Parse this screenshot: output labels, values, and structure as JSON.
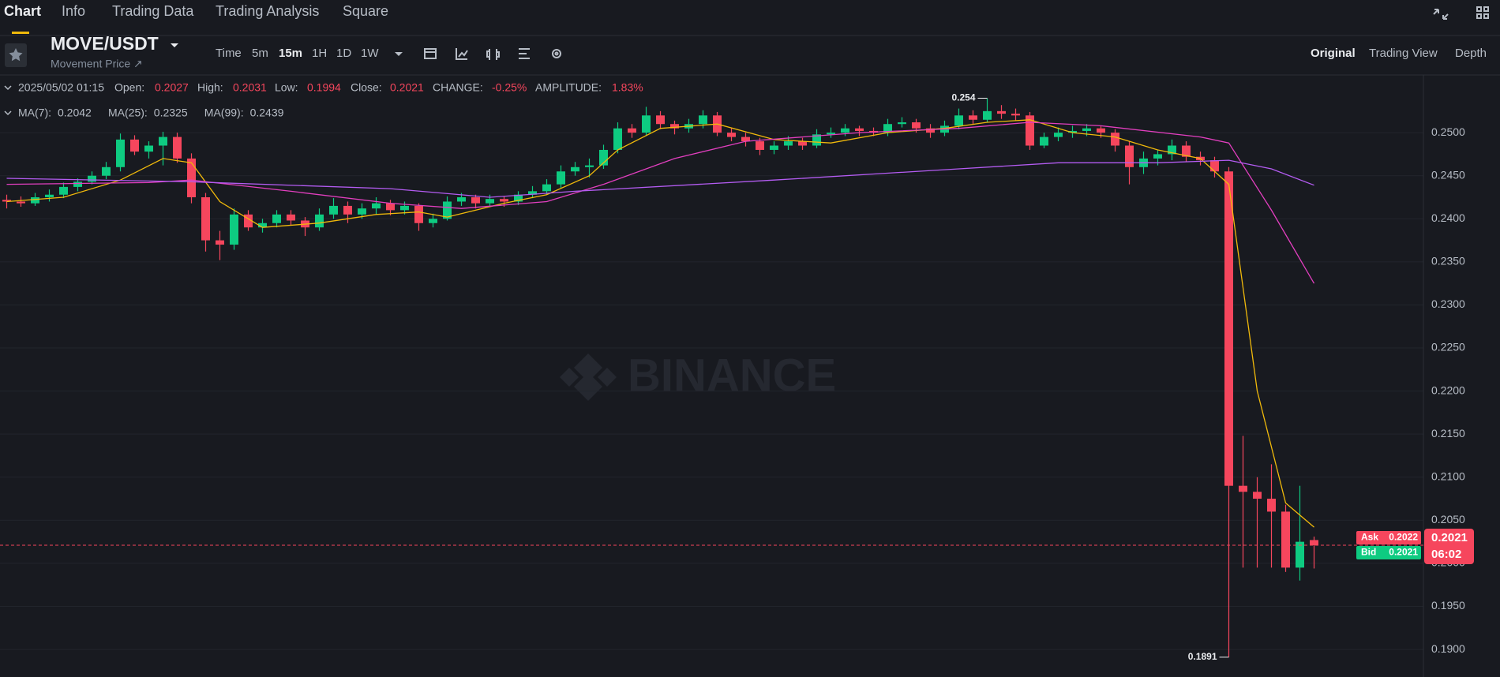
{
  "tabs": [
    "Chart",
    "Info",
    "Trading Data",
    "Trading Analysis",
    "Square"
  ],
  "symbol": "MOVE/USDT",
  "subtitle": "Movement Price ↗",
  "intervals": [
    "Time",
    "5m",
    "15m",
    "1H",
    "1D",
    "1W"
  ],
  "views": [
    "Original",
    "Trading View",
    "Depth"
  ],
  "info": {
    "time": "2025/05/02 01:15",
    "open_label": "Open:",
    "high_label": "High:",
    "low_label": "Low:",
    "close_label": "Close:",
    "change_label": "CHANGE:",
    "change": "-0.25%",
    "amplitude_label": "AMPLITUDE:",
    "amplitude": "1.83%"
  },
  "order_book": {
    "ask_label": "Ask",
    "ask": 0.2022,
    "bid_label": "Bid",
    "bid": 0.2021,
    "countdown": "06:02"
  },
  "chart_data": {
    "type": "candlestick",
    "watermark": "BINANCE",
    "grid": true,
    "up_color": "#0ecb81",
    "down_color": "#f6465d",
    "ylim": [
      0.1868,
      0.2567
    ],
    "yticks": [
      {
        "value": 0.19,
        "label": "0.1900"
      },
      {
        "value": 0.195,
        "label": "0.1950"
      },
      {
        "value": 0.2,
        "label": "0.2000"
      },
      {
        "value": 0.205,
        "label": "0.2050"
      },
      {
        "value": 0.21,
        "label": "0.2100"
      },
      {
        "value": 0.215,
        "label": "0.2150"
      },
      {
        "value": 0.22,
        "label": "0.2200"
      },
      {
        "value": 0.225,
        "label": "0.2250"
      },
      {
        "value": 0.23,
        "label": "0.2300"
      },
      {
        "value": 0.235,
        "label": "0.2350"
      },
      {
        "value": 0.24,
        "label": "0.2400"
      },
      {
        "value": 0.245,
        "label": "0.2450"
      },
      {
        "value": 0.25,
        "label": "0.2500"
      }
    ],
    "candles": [
      [
        0.2422,
        0.2428,
        0.2412,
        0.242
      ],
      [
        0.242,
        0.2426,
        0.2414,
        0.2418
      ],
      [
        0.2418,
        0.243,
        0.2415,
        0.2425
      ],
      [
        0.2425,
        0.2434,
        0.242,
        0.2428
      ],
      [
        0.2428,
        0.2442,
        0.2424,
        0.2437
      ],
      [
        0.2437,
        0.2447,
        0.2432,
        0.2443
      ],
      [
        0.2443,
        0.2455,
        0.244,
        0.245
      ],
      [
        0.245,
        0.2466,
        0.2446,
        0.246
      ],
      [
        0.246,
        0.2499,
        0.2455,
        0.2492
      ],
      [
        0.2492,
        0.2497,
        0.2474,
        0.2478
      ],
      [
        0.2478,
        0.249,
        0.247,
        0.2485
      ],
      [
        0.2485,
        0.2501,
        0.2462,
        0.2495
      ],
      [
        0.2495,
        0.25,
        0.2465,
        0.247
      ],
      [
        0.247,
        0.2476,
        0.2418,
        0.2425
      ],
      [
        0.2425,
        0.243,
        0.2362,
        0.2375
      ],
      [
        0.2375,
        0.2386,
        0.2352,
        0.237
      ],
      [
        0.237,
        0.2412,
        0.2364,
        0.2405
      ],
      [
        0.2405,
        0.241,
        0.2386,
        0.239
      ],
      [
        0.239,
        0.24,
        0.2384,
        0.2395
      ],
      [
        0.2395,
        0.241,
        0.239,
        0.2405
      ],
      [
        0.2405,
        0.241,
        0.2392,
        0.2398
      ],
      [
        0.2398,
        0.2402,
        0.238,
        0.239
      ],
      [
        0.239,
        0.2412,
        0.2386,
        0.2405
      ],
      [
        0.2405,
        0.2424,
        0.24,
        0.2415
      ],
      [
        0.2415,
        0.242,
        0.2395,
        0.2405
      ],
      [
        0.2405,
        0.2418,
        0.24,
        0.2412
      ],
      [
        0.2412,
        0.2425,
        0.2405,
        0.2418
      ],
      [
        0.2418,
        0.2422,
        0.2404,
        0.241
      ],
      [
        0.241,
        0.242,
        0.2405,
        0.2415
      ],
      [
        0.2415,
        0.2418,
        0.2386,
        0.2395
      ],
      [
        0.2395,
        0.2406,
        0.239,
        0.24
      ],
      [
        0.24,
        0.2426,
        0.2398,
        0.242
      ],
      [
        0.242,
        0.243,
        0.2415,
        0.2425
      ],
      [
        0.2425,
        0.2428,
        0.2412,
        0.2418
      ],
      [
        0.2418,
        0.2428,
        0.2414,
        0.2423
      ],
      [
        0.2423,
        0.2426,
        0.2414,
        0.242
      ],
      [
        0.242,
        0.2432,
        0.2416,
        0.2428
      ],
      [
        0.2428,
        0.2438,
        0.2424,
        0.2432
      ],
      [
        0.2432,
        0.2446,
        0.2428,
        0.244
      ],
      [
        0.244,
        0.2462,
        0.2436,
        0.2455
      ],
      [
        0.2455,
        0.2466,
        0.245,
        0.246
      ],
      [
        0.246,
        0.247,
        0.2448,
        0.2462
      ],
      [
        0.2462,
        0.2486,
        0.2458,
        0.248
      ],
      [
        0.248,
        0.2512,
        0.2476,
        0.2505
      ],
      [
        0.2505,
        0.251,
        0.2494,
        0.25
      ],
      [
        0.25,
        0.253,
        0.2496,
        0.252
      ],
      [
        0.252,
        0.2525,
        0.2504,
        0.251
      ],
      [
        0.251,
        0.2514,
        0.2498,
        0.2505
      ],
      [
        0.2505,
        0.2516,
        0.25,
        0.251
      ],
      [
        0.251,
        0.2526,
        0.2505,
        0.252
      ],
      [
        0.252,
        0.2524,
        0.2496,
        0.25
      ],
      [
        0.25,
        0.2506,
        0.249,
        0.2495
      ],
      [
        0.2495,
        0.25,
        0.2484,
        0.249
      ],
      [
        0.249,
        0.2494,
        0.2474,
        0.248
      ],
      [
        0.248,
        0.249,
        0.2475,
        0.2485
      ],
      [
        0.2485,
        0.2496,
        0.248,
        0.249
      ],
      [
        0.249,
        0.2494,
        0.248,
        0.2485
      ],
      [
        0.2485,
        0.2504,
        0.2482,
        0.2498
      ],
      [
        0.2498,
        0.2506,
        0.2494,
        0.25
      ],
      [
        0.25,
        0.251,
        0.2496,
        0.2505
      ],
      [
        0.2505,
        0.2508,
        0.2496,
        0.2502
      ],
      [
        0.2502,
        0.2506,
        0.2496,
        0.25
      ],
      [
        0.25,
        0.2516,
        0.2496,
        0.251
      ],
      [
        0.251,
        0.2518,
        0.2506,
        0.2512
      ],
      [
        0.2512,
        0.2516,
        0.25,
        0.2505
      ],
      [
        0.2505,
        0.251,
        0.2494,
        0.25
      ],
      [
        0.25,
        0.2514,
        0.2496,
        0.2508
      ],
      [
        0.2508,
        0.2528,
        0.2504,
        0.252
      ],
      [
        0.252,
        0.2526,
        0.251,
        0.2515
      ],
      [
        0.2515,
        0.254,
        0.2512,
        0.2525
      ],
      [
        0.2525,
        0.2532,
        0.2516,
        0.2522
      ],
      [
        0.2522,
        0.2528,
        0.2514,
        0.252
      ],
      [
        0.252,
        0.2524,
        0.248,
        0.2485
      ],
      [
        0.2485,
        0.25,
        0.2482,
        0.2495
      ],
      [
        0.2495,
        0.2506,
        0.249,
        0.25
      ],
      [
        0.25,
        0.2508,
        0.2494,
        0.2502
      ],
      [
        0.2502,
        0.251,
        0.2496,
        0.2505
      ],
      [
        0.2505,
        0.2508,
        0.2494,
        0.25
      ],
      [
        0.25,
        0.2504,
        0.2478,
        0.2485
      ],
      [
        0.2485,
        0.249,
        0.244,
        0.246
      ],
      [
        0.246,
        0.2478,
        0.2452,
        0.247
      ],
      [
        0.247,
        0.248,
        0.2462,
        0.2475
      ],
      [
        0.2475,
        0.2492,
        0.2468,
        0.2485
      ],
      [
        0.2485,
        0.249,
        0.2466,
        0.2472
      ],
      [
        0.2472,
        0.2478,
        0.2462,
        0.2468
      ],
      [
        0.2468,
        0.2472,
        0.2448,
        0.2455
      ],
      [
        0.2455,
        0.246,
        0.1891,
        0.209
      ],
      [
        0.209,
        0.2148,
        0.1995,
        0.2083
      ],
      [
        0.2083,
        0.21,
        0.1995,
        0.2075
      ],
      [
        0.2075,
        0.2115,
        0.1995,
        0.206
      ],
      [
        0.206,
        0.2068,
        0.199,
        0.1995
      ],
      [
        0.1995,
        0.209,
        0.198,
        0.2025
      ],
      [
        0.2027,
        0.2031,
        0.1994,
        0.2021
      ]
    ],
    "series": [
      {
        "name": "MA(7):",
        "color": "#f0b90b",
        "x": [
          0,
          4,
          8,
          11,
          13,
          15,
          18,
          22,
          26,
          29,
          31,
          35,
          38,
          41,
          43,
          46,
          50,
          54,
          58,
          62,
          66,
          69,
          72,
          75,
          78,
          81,
          84,
          86,
          88,
          90,
          92
        ],
        "values": [
          0.242,
          0.2425,
          0.2445,
          0.247,
          0.2465,
          0.242,
          0.239,
          0.2395,
          0.2405,
          0.2408,
          0.2402,
          0.2418,
          0.2428,
          0.245,
          0.248,
          0.2505,
          0.251,
          0.2492,
          0.2488,
          0.25,
          0.2505,
          0.2512,
          0.2515,
          0.25,
          0.2495,
          0.248,
          0.247,
          0.244,
          0.22,
          0.207,
          0.2042
        ]
      },
      {
        "name": "MA(25):",
        "color": "#e23fbf",
        "x": [
          0,
          10,
          13,
          20,
          27,
          32,
          38,
          42,
          47,
          52,
          60,
          67,
          72,
          77,
          84,
          86,
          89,
          92
        ],
        "values": [
          0.244,
          0.2442,
          0.2445,
          0.2432,
          0.2418,
          0.2412,
          0.242,
          0.244,
          0.247,
          0.249,
          0.25,
          0.2505,
          0.2512,
          0.2508,
          0.2495,
          0.2488,
          0.241,
          0.2325
        ]
      },
      {
        "name": "MA(99):",
        "color": "#b45cf2",
        "x": [
          0,
          13,
          27,
          34,
          40,
          54,
          67,
          74,
          81,
          86,
          89,
          92
        ],
        "values": [
          0.2447,
          0.2443,
          0.2435,
          0.2425,
          0.2432,
          0.2445,
          0.2458,
          0.2465,
          0.2465,
          0.2468,
          0.2458,
          0.2439
        ]
      }
    ]
  }
}
